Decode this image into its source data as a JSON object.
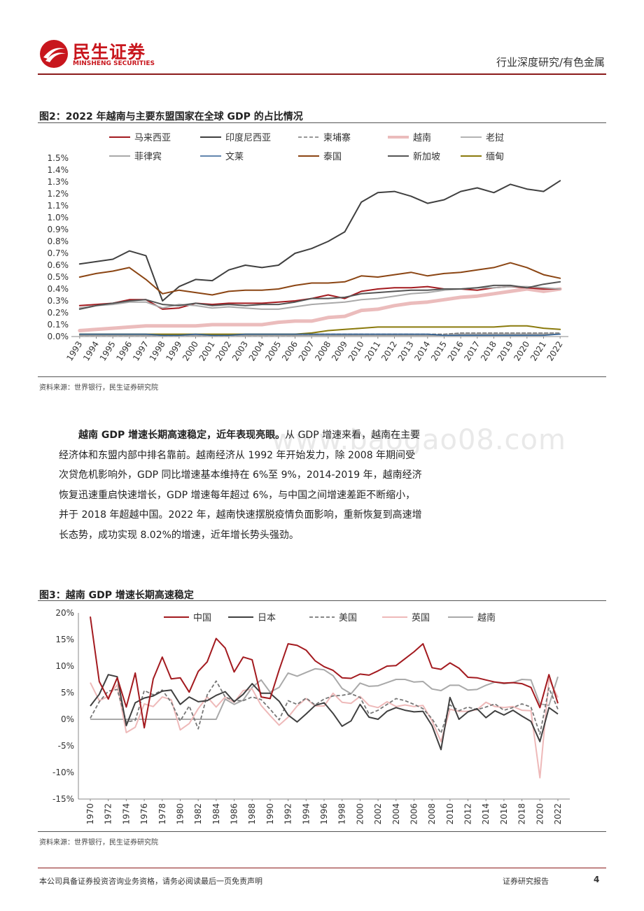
{
  "header": {
    "brand_cn": "民生证券",
    "brand_en": "MINSHENG SECURITIES",
    "category": "行业深度研究/有色金属",
    "brand_color": "#c8161d"
  },
  "figure2": {
    "title": "图2：2022 年越南与主要东盟国家在全球 GDP 的占比情况",
    "source": "资料来源：世界银行，民生证券研究院"
  },
  "figure3": {
    "title": "图3：越南 GDP 增速长期高速稳定",
    "source": "资料来源：世界银行，民生证券研究院"
  },
  "paragraph": {
    "lead": "越南 GDP 增速长期高速稳定，近年表现亮眼。",
    "body": "从 GDP 增速来看，越南在主要经济体和东盟内部中排名靠前。越南经济从 1992 年开始发力，除 2008 年期间受次贷危机影响外，GDP 同比增速基本维持在 6%至 9%，2014-2019 年，越南经济恢复迅速重启快速增长，GDP 增速每年超过 6%，与中国之间增速差距不断缩小，并于 2018 年超越中国。2022 年，越南快速摆脱疫情负面影响，重新恢复到高速增长态势，成功实现 8.02%的增速，近年增长势头强劲。"
  },
  "watermark": "www.baogao08.com",
  "footer": {
    "disclaimer": "本公司具备证券投资咨询业务资格，请务必阅读最后一页免责声明",
    "report_type": "证券研究报告",
    "page": "4"
  },
  "chart_data": [
    {
      "type": "line",
      "x": [
        1993,
        1994,
        1995,
        1996,
        1997,
        1998,
        1999,
        2000,
        2001,
        2002,
        2003,
        2004,
        2005,
        2006,
        2007,
        2008,
        2009,
        2010,
        2011,
        2012,
        2013,
        2014,
        2015,
        2016,
        2017,
        2018,
        2019,
        2020,
        2021,
        2022
      ],
      "ylim": [
        0,
        1.5
      ],
      "yticks": [
        "0.0%",
        "0.1%",
        "0.2%",
        "0.3%",
        "0.4%",
        "0.5%",
        "0.6%",
        "0.7%",
        "0.8%",
        "0.9%",
        "1.0%",
        "1.1%",
        "1.2%",
        "1.3%",
        "1.4%",
        "1.5%"
      ],
      "legend_position": "top",
      "series": [
        {
          "name": "马来西亚",
          "color": "#a31a1f",
          "width": 2,
          "dash": "",
          "values": [
            0.26,
            0.27,
            0.28,
            0.31,
            0.31,
            0.23,
            0.24,
            0.28,
            0.27,
            0.28,
            0.28,
            0.28,
            0.29,
            0.3,
            0.32,
            0.35,
            0.32,
            0.38,
            0.4,
            0.41,
            0.41,
            0.42,
            0.4,
            0.4,
            0.39,
            0.41,
            0.42,
            0.41,
            0.4,
            0.4
          ]
        },
        {
          "name": "印度尼西亚",
          "color": "#404040",
          "width": 2,
          "dash": "",
          "values": [
            0.61,
            0.63,
            0.65,
            0.72,
            0.68,
            0.3,
            0.42,
            0.48,
            0.47,
            0.56,
            0.6,
            0.58,
            0.6,
            0.7,
            0.74,
            0.8,
            0.88,
            1.13,
            1.21,
            1.22,
            1.18,
            1.12,
            1.15,
            1.22,
            1.25,
            1.21,
            1.28,
            1.24,
            1.22,
            1.31
          ]
        },
        {
          "name": "柬埔寨",
          "color": "#777777",
          "width": 1.6,
          "dash": "5,3",
          "values": [
            0.01,
            0.01,
            0.01,
            0.01,
            0.01,
            0.01,
            0.01,
            0.01,
            0.01,
            0.01,
            0.01,
            0.01,
            0.01,
            0.01,
            0.02,
            0.02,
            0.02,
            0.02,
            0.02,
            0.02,
            0.02,
            0.02,
            0.02,
            0.03,
            0.03,
            0.03,
            0.03,
            0.03,
            0.03,
            0.03
          ]
        },
        {
          "name": "越南",
          "color": "#ebbcbc",
          "width": 5,
          "dash": "",
          "values": [
            0.05,
            0.06,
            0.07,
            0.08,
            0.09,
            0.09,
            0.09,
            0.09,
            0.1,
            0.1,
            0.1,
            0.1,
            0.12,
            0.13,
            0.13,
            0.16,
            0.17,
            0.22,
            0.23,
            0.26,
            0.28,
            0.29,
            0.31,
            0.33,
            0.34,
            0.36,
            0.38,
            0.4,
            0.38,
            0.4
          ]
        },
        {
          "name": "老挝",
          "color": "#9a9a9a",
          "width": 1.6,
          "dash": "",
          "values": [
            0.01,
            0.01,
            0.01,
            0.01,
            0.01,
            0.01,
            0.01,
            0.01,
            0.01,
            0.01,
            0.01,
            0.01,
            0.01,
            0.01,
            0.01,
            0.01,
            0.01,
            0.01,
            0.01,
            0.01,
            0.01,
            0.01,
            0.01,
            0.02,
            0.02,
            0.02,
            0.02,
            0.02,
            0.02,
            0.02
          ]
        },
        {
          "name": "菲律宾",
          "color": "#a9a9a9",
          "width": 2,
          "dash": "",
          "values": [
            0.24,
            0.26,
            0.27,
            0.29,
            0.29,
            0.24,
            0.27,
            0.26,
            0.24,
            0.25,
            0.24,
            0.23,
            0.23,
            0.25,
            0.27,
            0.28,
            0.29,
            0.31,
            0.32,
            0.34,
            0.36,
            0.37,
            0.39,
            0.4,
            0.41,
            0.41,
            0.42,
            0.42,
            0.41,
            0.4
          ]
        },
        {
          "name": "文莱",
          "color": "#2e5f94",
          "width": 1.6,
          "dash": "",
          "values": [
            0.02,
            0.02,
            0.02,
            0.02,
            0.02,
            0.01,
            0.01,
            0.02,
            0.01,
            0.01,
            0.02,
            0.02,
            0.02,
            0.02,
            0.02,
            0.02,
            0.02,
            0.02,
            0.02,
            0.02,
            0.02,
            0.02,
            0.01,
            0.01,
            0.01,
            0.01,
            0.01,
            0.01,
            0.01,
            0.02
          ]
        },
        {
          "name": "泰国",
          "color": "#8b4513",
          "width": 2,
          "dash": "",
          "values": [
            0.5,
            0.53,
            0.55,
            0.58,
            0.48,
            0.36,
            0.39,
            0.37,
            0.35,
            0.38,
            0.39,
            0.39,
            0.4,
            0.43,
            0.45,
            0.45,
            0.46,
            0.51,
            0.5,
            0.52,
            0.54,
            0.51,
            0.53,
            0.54,
            0.56,
            0.58,
            0.62,
            0.58,
            0.52,
            0.49
          ]
        },
        {
          "name": "新加坡",
          "color": "#555555",
          "width": 2,
          "dash": "",
          "values": [
            0.23,
            0.26,
            0.28,
            0.3,
            0.31,
            0.27,
            0.26,
            0.28,
            0.26,
            0.27,
            0.26,
            0.27,
            0.27,
            0.29,
            0.32,
            0.32,
            0.33,
            0.36,
            0.37,
            0.38,
            0.39,
            0.39,
            0.4,
            0.4,
            0.41,
            0.43,
            0.43,
            0.41,
            0.44,
            0.46
          ]
        },
        {
          "name": "缅甸",
          "color": "#8a7a0c",
          "width": 2,
          "dash": "",
          "values": [
            0.02,
            0.02,
            0.02,
            0.02,
            0.02,
            0.02,
            0.02,
            0.02,
            0.02,
            0.02,
            0.02,
            0.02,
            0.02,
            0.02,
            0.03,
            0.05,
            0.06,
            0.07,
            0.08,
            0.08,
            0.08,
            0.08,
            0.08,
            0.08,
            0.08,
            0.08,
            0.09,
            0.09,
            0.07,
            0.06
          ]
        }
      ]
    },
    {
      "type": "line",
      "x": [
        1970,
        1971,
        1972,
        1973,
        1974,
        1975,
        1976,
        1977,
        1978,
        1979,
        1980,
        1981,
        1982,
        1983,
        1984,
        1985,
        1986,
        1987,
        1988,
        1989,
        1990,
        1991,
        1992,
        1993,
        1994,
        1995,
        1996,
        1997,
        1998,
        1999,
        2000,
        2001,
        2002,
        2003,
        2004,
        2005,
        2006,
        2007,
        2008,
        2009,
        2010,
        2011,
        2012,
        2013,
        2014,
        2015,
        2016,
        2017,
        2018,
        2019,
        2020,
        2021,
        2022
      ],
      "xtick_labels": [
        "1970",
        "1972",
        "1974",
        "1976",
        "1978",
        "1980",
        "1982",
        "1984",
        "1986",
        "1988",
        "1990",
        "1992",
        "1994",
        "1996",
        "1998",
        "2000",
        "2002",
        "2004",
        "2006",
        "2008",
        "2010",
        "2012",
        "2014",
        "2016",
        "2018",
        "2020",
        "2022"
      ],
      "ylim": [
        -15,
        20
      ],
      "yticks": [
        "20%",
        "15%",
        "10%",
        "5%",
        "0%",
        "-5%",
        "-10%",
        "-15%"
      ],
      "legend_position": "top",
      "series": [
        {
          "name": "中国",
          "color": "#a31a1f",
          "width": 2,
          "dash": "",
          "values": [
            19.3,
            7.1,
            3.8,
            7.8,
            2.3,
            8.7,
            -1.6,
            7.6,
            11.7,
            7.6,
            7.8,
            5.1,
            9.0,
            10.8,
            15.2,
            13.4,
            8.9,
            11.7,
            11.2,
            4.2,
            3.9,
            9.3,
            14.2,
            13.9,
            13.0,
            11.0,
            9.9,
            9.2,
            7.8,
            7.7,
            8.5,
            8.3,
            9.1,
            10.0,
            10.1,
            11.4,
            12.7,
            14.2,
            9.7,
            9.4,
            10.6,
            9.6,
            7.9,
            7.8,
            7.4,
            7.0,
            6.8,
            6.9,
            6.7,
            6.0,
            2.2,
            8.4,
            3.0
          ]
        },
        {
          "name": "日本",
          "color": "#404040",
          "width": 2,
          "dash": "",
          "values": [
            2.5,
            4.7,
            8.4,
            8.0,
            -1.2,
            3.1,
            4.0,
            4.4,
            5.3,
            5.5,
            2.8,
            4.2,
            3.3,
            3.5,
            4.5,
            5.2,
            3.3,
            4.7,
            6.7,
            4.9,
            4.9,
            3.4,
            0.8,
            -0.5,
            1.0,
            2.6,
            3.1,
            1.1,
            -1.3,
            -0.3,
            2.8,
            0.4,
            0.0,
            1.5,
            2.2,
            1.7,
            1.4,
            1.5,
            -1.2,
            -5.7,
            4.1,
            0.0,
            1.4,
            2.0,
            0.3,
            1.6,
            0.8,
            1.7,
            0.6,
            -0.4,
            -4.2,
            2.2,
            1.0
          ]
        },
        {
          "name": "美国",
          "color": "#777777",
          "width": 1.8,
          "dash": "5,3",
          "values": [
            0.2,
            3.3,
            5.3,
            5.6,
            -0.5,
            -0.2,
            5.4,
            4.6,
            5.5,
            3.2,
            -0.3,
            2.5,
            -1.8,
            4.6,
            7.2,
            4.2,
            3.5,
            3.5,
            4.2,
            3.7,
            1.9,
            -0.1,
            3.5,
            2.8,
            4.0,
            2.7,
            3.8,
            4.4,
            4.5,
            4.8,
            4.1,
            1.0,
            1.7,
            2.8,
            3.9,
            3.5,
            2.8,
            2.0,
            0.1,
            -2.6,
            2.7,
            1.6,
            2.3,
            1.8,
            2.3,
            2.9,
            1.7,
            2.2,
            2.9,
            2.3,
            -2.8,
            5.9,
            1.9
          ]
        },
        {
          "name": "英国",
          "color": "#eeb9b9",
          "width": 2,
          "dash": "",
          "values": [
            6.9,
            3.5,
            4.3,
            6.5,
            -2.5,
            -1.5,
            2.9,
            2.4,
            4.2,
            3.7,
            -2.0,
            -0.8,
            2.0,
            4.2,
            2.3,
            4.2,
            3.2,
            5.4,
            5.7,
            2.6,
            0.7,
            -1.1,
            0.4,
            2.5,
            3.9,
            2.5,
            2.5,
            4.9,
            3.2,
            3.0,
            4.3,
            2.6,
            2.2,
            3.3,
            2.4,
            2.7,
            2.4,
            2.6,
            -0.3,
            -4.2,
            1.9,
            1.5,
            1.5,
            1.8,
            3.2,
            2.4,
            2.2,
            2.4,
            1.7,
            1.6,
            -11.0,
            7.6,
            4.1
          ]
        },
        {
          "name": "越南",
          "color": "#a9a9a9",
          "width": 2,
          "dash": "",
          "values": [
            0,
            0,
            0,
            0,
            0,
            0,
            0,
            0,
            0,
            0,
            0,
            0,
            0,
            0,
            0,
            3.8,
            2.8,
            3.6,
            6.0,
            7.4,
            5.1,
            6.0,
            8.7,
            8.1,
            8.8,
            9.5,
            9.3,
            8.2,
            5.8,
            4.8,
            6.8,
            6.2,
            6.3,
            6.9,
            7.5,
            7.5,
            7.0,
            7.1,
            5.7,
            5.4,
            6.4,
            6.4,
            5.5,
            5.6,
            6.4,
            7.0,
            6.7,
            6.9,
            7.5,
            7.4,
            2.9,
            2.6,
            8.0
          ]
        }
      ]
    }
  ]
}
